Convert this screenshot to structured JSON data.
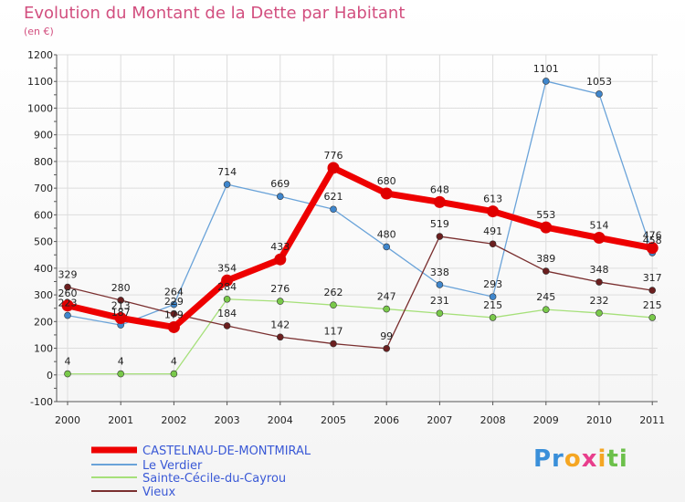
{
  "title": "Evolution du Montant de la Dette par Habitant",
  "subtitle": "(en €)",
  "logo": {
    "parts": [
      "Pr",
      "o",
      "x",
      "i",
      "ti"
    ],
    "colors": [
      "#3a8fd9",
      "#f5a623",
      "#e83e8c",
      "#f5a623",
      "#6cc04a"
    ]
  },
  "chart_data": {
    "type": "line",
    "title": "Evolution du Montant de la Dette par Habitant",
    "ylabel": "(en €)",
    "xlabel": "",
    "ylim": [
      -100,
      1200
    ],
    "yticks": [
      -100,
      0,
      100,
      200,
      300,
      400,
      500,
      600,
      700,
      800,
      900,
      1000,
      1100,
      1200
    ],
    "grid": true,
    "legend": "bottom-left",
    "x": [
      "2000",
      "2001",
      "2002",
      "2003",
      "2004",
      "2005",
      "2006",
      "2007",
      "2008",
      "2009",
      "2010",
      "2011"
    ],
    "series": [
      {
        "name": "CASTELNAU-DE-MONTMIRAL",
        "color": "#ee0000",
        "marker": "#e00000",
        "width": 7,
        "values": [
          260,
          213,
          179,
          354,
          433,
          776,
          680,
          648,
          613,
          553,
          514,
          476
        ],
        "labels": [
          "260",
          "213",
          "179",
          "354",
          "433",
          "776",
          "680",
          "648",
          "613",
          "553",
          "514",
          "476"
        ]
      },
      {
        "name": "Le Verdier",
        "color": "#6aa3d9",
        "marker": "#3f86cc",
        "width": 1.3,
        "values": [
          223,
          187,
          264,
          714,
          669,
          621,
          480,
          338,
          293,
          1101,
          1053,
          458
        ],
        "labels": [
          "223",
          "187",
          "264",
          "714",
          "669",
          "621",
          "480",
          "338",
          "293",
          "1101",
          "1053",
          "458"
        ]
      },
      {
        "name": "Sainte-Cécile-du-Cayrou",
        "color": "#a6e07a",
        "marker": "#79c94a",
        "width": 1.3,
        "values": [
          4,
          4,
          4,
          284,
          276,
          262,
          247,
          231,
          215,
          245,
          232,
          215
        ],
        "labels": [
          "4",
          "4",
          "4",
          "284",
          "276",
          "262",
          "247",
          "231",
          "215",
          "245",
          "232",
          "215"
        ]
      },
      {
        "name": "Vieux",
        "color": "#7a2f2f",
        "marker": "#6b1f1f",
        "width": 1.3,
        "values": [
          329,
          280,
          229,
          184,
          142,
          117,
          99,
          519,
          491,
          389,
          348,
          317
        ],
        "labels": [
          "329",
          "280",
          "229",
          "184",
          "142",
          "117",
          "99",
          "519",
          "491",
          "389",
          "348",
          "317"
        ]
      }
    ]
  }
}
